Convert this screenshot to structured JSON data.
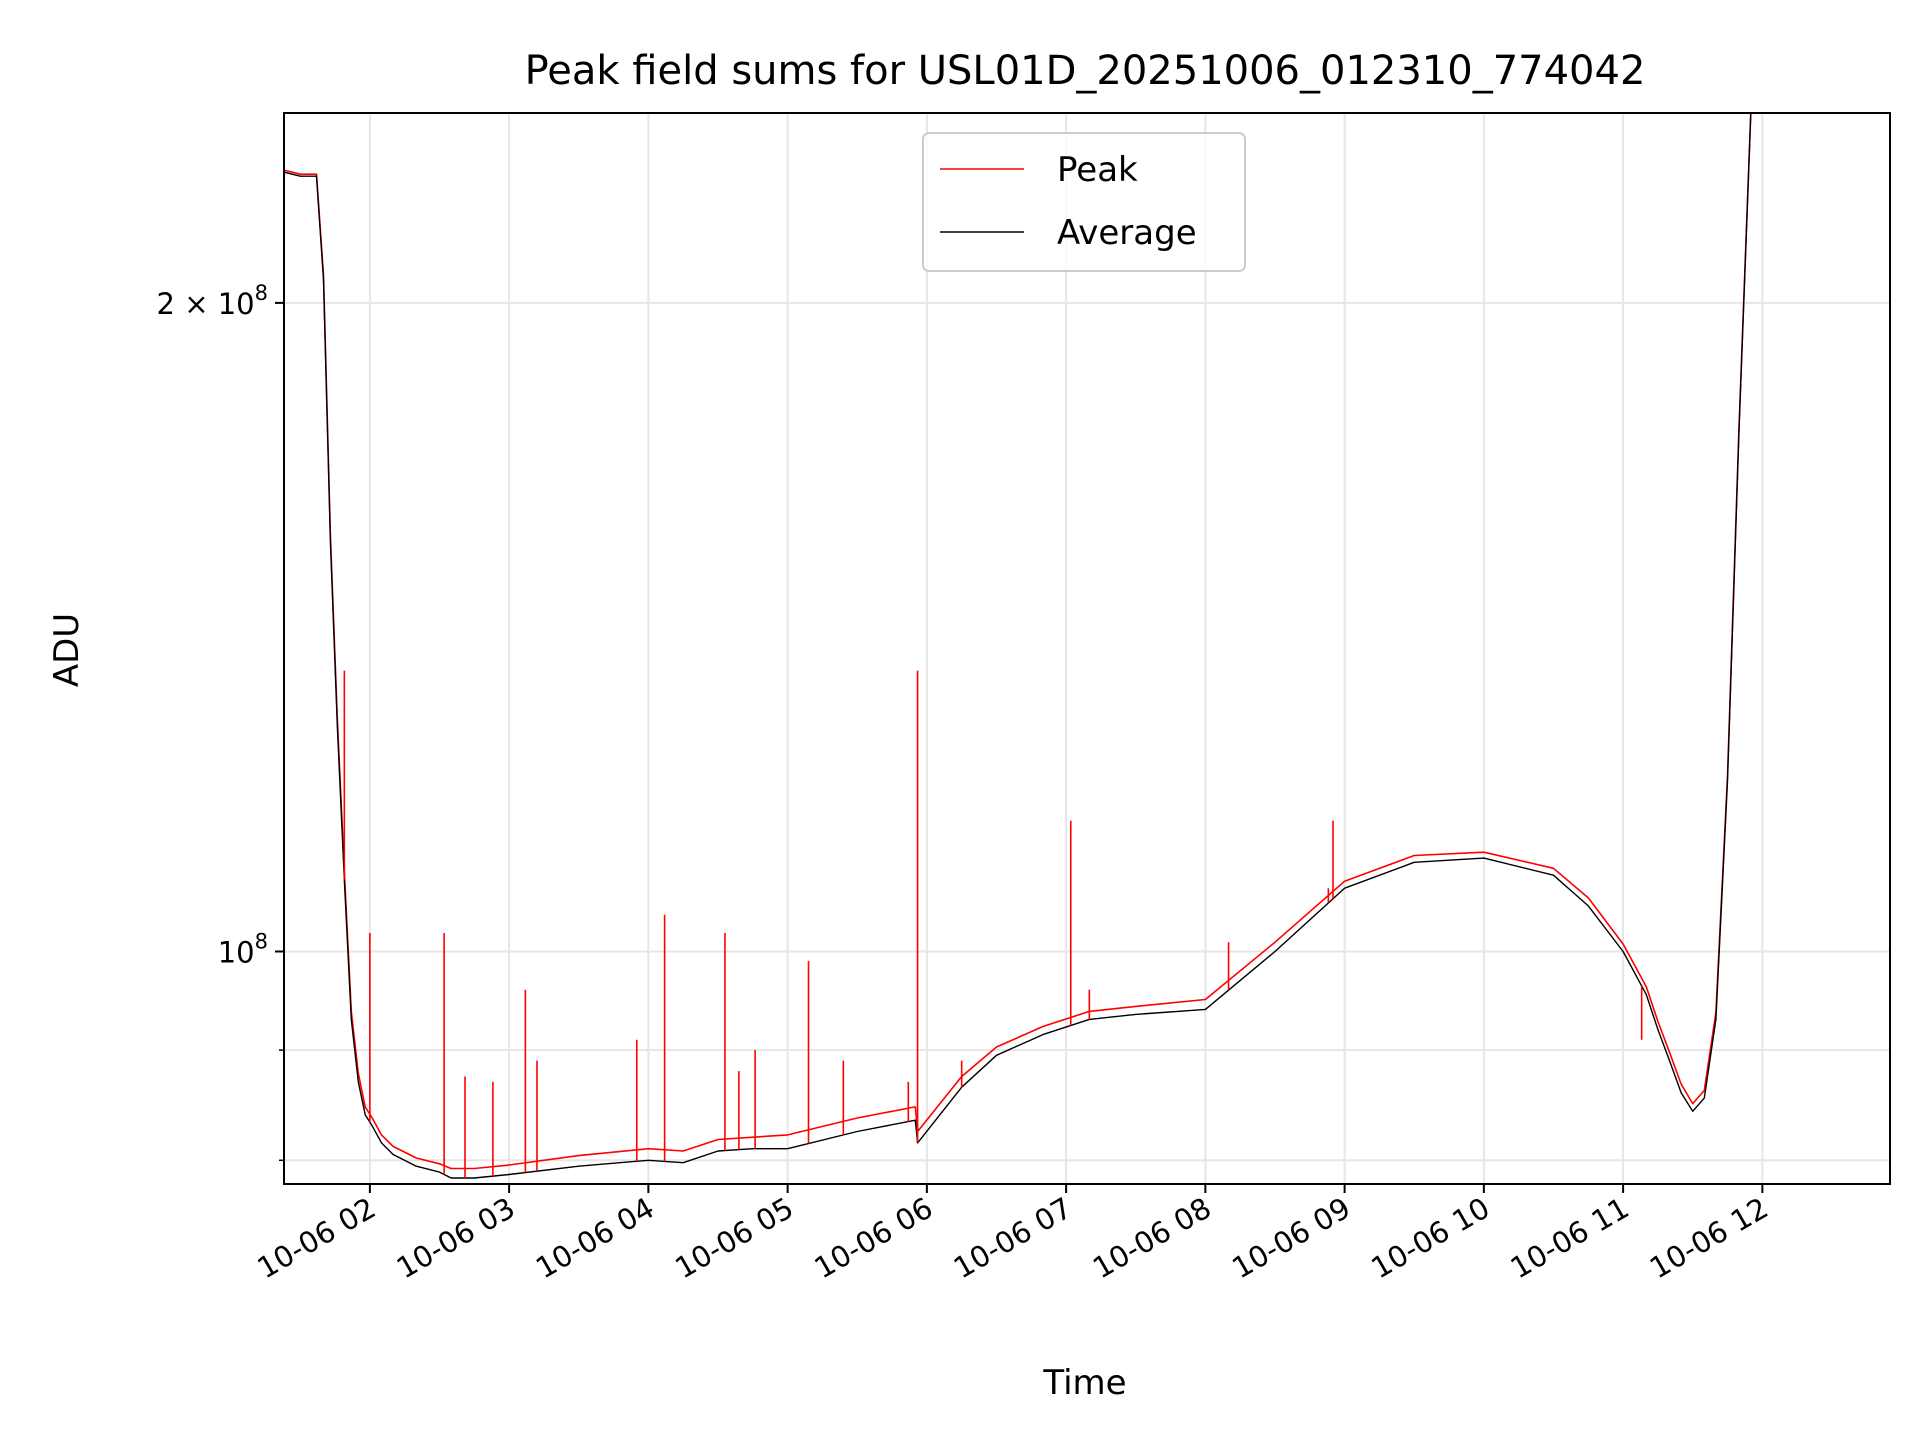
{
  "chart_data": {
    "type": "line",
    "title": "Peak field sums for USL01D_20251006_012310_774042",
    "xlabel": "Time",
    "ylabel": "ADU",
    "y_scale": "log",
    "ylim": [
      78000000,
      245000000
    ],
    "xlim": [
      "2025-10-06 01:23",
      "2025-10-06 12:55"
    ],
    "grid": true,
    "legend": {
      "placement": "top-center",
      "entries": [
        "Peak",
        "Average"
      ]
    },
    "x_tick_labels": [
      "10-06 02",
      "10-06 03",
      "10-06 04",
      "10-06 05",
      "10-06 06",
      "10-06 07",
      "10-06 08",
      "10-06 09",
      "10-06 10",
      "10-06 11",
      "10-06 12"
    ],
    "x_ticks": [
      "2025-10-06 02:00",
      "2025-10-06 03:00",
      "2025-10-06 04:00",
      "2025-10-06 05:00",
      "2025-10-06 06:00",
      "2025-10-06 07:00",
      "2025-10-06 08:00",
      "2025-10-06 09:00",
      "2025-10-06 10:00",
      "2025-10-06 11:00",
      "2025-10-06 12:00"
    ],
    "y_tick_labels": [
      {
        "value": 100000000,
        "label": "10",
        "exp": "8"
      },
      {
        "value": 200000000,
        "label": "2 × 10",
        "exp": "8"
      }
    ],
    "y_minor_ticks": [
      80000000,
      90000000
    ],
    "colors": {
      "Peak": "#ff0000",
      "Average": "#000000",
      "grid": "#e6e6e6"
    },
    "series": [
      {
        "name": "Average",
        "x": [
          "2025-10-06 01:23",
          "2025-10-06 01:30",
          "2025-10-06 01:37",
          "2025-10-06 01:40",
          "2025-10-06 01:43",
          "2025-10-06 01:46",
          "2025-10-06 01:49",
          "2025-10-06 01:52",
          "2025-10-06 01:55",
          "2025-10-06 01:58",
          "2025-10-06 02:01",
          "2025-10-06 02:05",
          "2025-10-06 02:10",
          "2025-10-06 02:20",
          "2025-10-06 02:30",
          "2025-10-06 02:35",
          "2025-10-06 02:45",
          "2025-10-06 03:00",
          "2025-10-06 03:30",
          "2025-10-06 04:00",
          "2025-10-06 04:15",
          "2025-10-06 04:30",
          "2025-10-06 04:45",
          "2025-10-06 05:00",
          "2025-10-06 05:30",
          "2025-10-06 05:55",
          "2025-10-06 05:56",
          "2025-10-06 06:15",
          "2025-10-06 06:30",
          "2025-10-06 06:50",
          "2025-10-06 07:10",
          "2025-10-06 07:30",
          "2025-10-06 08:00",
          "2025-10-06 08:30",
          "2025-10-06 09:00",
          "2025-10-06 09:30",
          "2025-10-06 10:00",
          "2025-10-06 10:30",
          "2025-10-06 10:45",
          "2025-10-06 11:00",
          "2025-10-06 11:10",
          "2025-10-06 11:15",
          "2025-10-06 11:20",
          "2025-10-06 11:25",
          "2025-10-06 11:30",
          "2025-10-06 11:35",
          "2025-10-06 11:40",
          "2025-10-06 11:45",
          "2025-10-06 11:50",
          "2025-10-06 11:55"
        ],
        "values": [
          230000000,
          229000000,
          229000000,
          205000000,
          155000000,
          127000000,
          108000000,
          93000000,
          87000000,
          84000000,
          83000000,
          81500000,
          80500000,
          79500000,
          79000000,
          78500000,
          78500000,
          78800000,
          79500000,
          80000000,
          79800000,
          80800000,
          81000000,
          81000000,
          82500000,
          83500000,
          81500000,
          86500000,
          89500000,
          91500000,
          93000000,
          93500000,
          94000000,
          100000000,
          107000000,
          110000000,
          110500000,
          108500000,
          105000000,
          100000000,
          95500000,
          92000000,
          89000000,
          86000000,
          84300000,
          85500000,
          93000000,
          120000000,
          175000000,
          245000000
        ]
      },
      {
        "name": "Peak",
        "x": [
          "2025-10-06 01:23",
          "2025-10-06 01:30",
          "2025-10-06 01:37",
          "2025-10-06 01:40",
          "2025-10-06 01:43",
          "2025-10-06 01:46",
          "2025-10-06 01:49",
          "2025-10-06 01:52",
          "2025-10-06 01:55",
          "2025-10-06 01:58",
          "2025-10-06 02:01",
          "2025-10-06 02:05",
          "2025-10-06 02:10",
          "2025-10-06 02:20",
          "2025-10-06 02:30",
          "2025-10-06 02:35",
          "2025-10-06 02:45",
          "2025-10-06 03:00",
          "2025-10-06 03:30",
          "2025-10-06 04:00",
          "2025-10-06 04:15",
          "2025-10-06 04:30",
          "2025-10-06 04:45",
          "2025-10-06 05:00",
          "2025-10-06 05:30",
          "2025-10-06 05:55",
          "2025-10-06 05:56",
          "2025-10-06 06:15",
          "2025-10-06 06:30",
          "2025-10-06 06:50",
          "2025-10-06 07:10",
          "2025-10-06 07:30",
          "2025-10-06 08:00",
          "2025-10-06 08:30",
          "2025-10-06 09:00",
          "2025-10-06 09:30",
          "2025-10-06 10:00",
          "2025-10-06 10:30",
          "2025-10-06 10:45",
          "2025-10-06 11:00",
          "2025-10-06 11:10",
          "2025-10-06 11:15",
          "2025-10-06 11:20",
          "2025-10-06 11:25",
          "2025-10-06 11:30",
          "2025-10-06 11:35",
          "2025-10-06 11:40",
          "2025-10-06 11:45",
          "2025-10-06 11:50",
          "2025-10-06 11:55"
        ],
        "values": [
          230500000,
          229500000,
          229500000,
          206000000,
          156000000,
          128000000,
          109000000,
          93800000,
          87800000,
          84700000,
          83700000,
          82200000,
          81200000,
          80200000,
          79700000,
          79300000,
          79300000,
          79600000,
          80400000,
          81000000,
          80800000,
          81800000,
          82000000,
          82200000,
          83700000,
          84700000,
          82500000,
          87500000,
          90300000,
          92300000,
          93800000,
          94300000,
          95000000,
          101000000,
          107800000,
          110800000,
          111200000,
          109300000,
          105900000,
          100800000,
          96300000,
          92800000,
          89800000,
          86800000,
          85000000,
          86200000,
          93700000,
          120600000,
          175600000,
          245000000
        ]
      }
    ],
    "peak_spikes": [
      {
        "x": "2025-10-06 01:49",
        "value": 135000000
      },
      {
        "x": "2025-10-06 02:00",
        "value": 102000000
      },
      {
        "x": "2025-10-06 02:32",
        "value": 102000000
      },
      {
        "x": "2025-10-06 02:41",
        "value": 87500000
      },
      {
        "x": "2025-10-06 02:53",
        "value": 87000000
      },
      {
        "x": "2025-10-06 03:07",
        "value": 96000000
      },
      {
        "x": "2025-10-06 03:12",
        "value": 89000000
      },
      {
        "x": "2025-10-06 03:55",
        "value": 91000000
      },
      {
        "x": "2025-10-06 04:07",
        "value": 104000000
      },
      {
        "x": "2025-10-06 04:33",
        "value": 102000000
      },
      {
        "x": "2025-10-06 04:39",
        "value": 88000000
      },
      {
        "x": "2025-10-06 04:46",
        "value": 90000000
      },
      {
        "x": "2025-10-06 05:09",
        "value": 99000000
      },
      {
        "x": "2025-10-06 05:24",
        "value": 89000000
      },
      {
        "x": "2025-10-06 05:52",
        "value": 87000000
      },
      {
        "x": "2025-10-06 05:56",
        "value": 135000000
      },
      {
        "x": "2025-10-06 06:15",
        "value": 89000000
      },
      {
        "x": "2025-10-06 07:02",
        "value": 115000000
      },
      {
        "x": "2025-10-06 07:10",
        "value": 96000000
      },
      {
        "x": "2025-10-06 08:10",
        "value": 101000000
      },
      {
        "x": "2025-10-06 08:53",
        "value": 107000000
      },
      {
        "x": "2025-10-06 08:55",
        "value": 115000000
      },
      {
        "x": "2025-10-06 11:08",
        "value": 91000000
      }
    ]
  }
}
